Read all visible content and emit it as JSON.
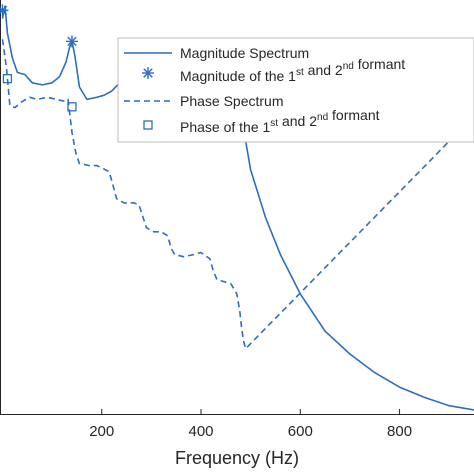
{
  "chart_data": {
    "type": "line",
    "xlabel": "Frequency (Hz)",
    "ylabel": "",
    "title": "",
    "xlim": [
      -5,
      950
    ],
    "ylim": [
      0,
      1
    ],
    "x_ticks": [
      200,
      400,
      600,
      800
    ],
    "x_tick_labels": [
      "200",
      "400",
      "600",
      "800"
    ],
    "grid": false,
    "legend": {
      "placement": "top-right",
      "entries": [
        {
          "label": "Magnitude Spectrum",
          "style": "solid-line"
        },
        {
          "label": "Magnitude of the 1st and 2nd formant",
          "style": "asterisk-marker"
        },
        {
          "label": "Phase Spectrum",
          "style": "dashed-line"
        },
        {
          "label": "Phase of the 1st and 2nd formant",
          "style": "square-marker"
        }
      ]
    },
    "series": [
      {
        "name": "Magnitude Spectrum",
        "style": "solid",
        "points": [
          [
            0,
            0.955
          ],
          [
            5,
            0.985
          ],
          [
            10,
            0.92
          ],
          [
            20,
            0.86
          ],
          [
            30,
            0.825
          ],
          [
            45,
            0.82
          ],
          [
            60,
            0.8
          ],
          [
            80,
            0.795
          ],
          [
            100,
            0.8
          ],
          [
            115,
            0.815
          ],
          [
            128,
            0.85
          ],
          [
            135,
            0.885
          ],
          [
            140,
            0.9
          ],
          [
            146,
            0.865
          ],
          [
            155,
            0.79
          ],
          [
            170,
            0.76
          ],
          [
            190,
            0.765
          ],
          [
            205,
            0.77
          ],
          [
            220,
            0.78
          ],
          [
            232,
            0.795
          ],
          [
            245,
            0.775
          ],
          [
            270,
            0.73
          ],
          [
            300,
            0.71
          ],
          [
            320,
            0.72
          ],
          [
            335,
            0.74
          ],
          [
            345,
            0.745
          ],
          [
            355,
            0.73
          ],
          [
            375,
            0.705
          ],
          [
            395,
            0.7
          ],
          [
            410,
            0.71
          ],
          [
            425,
            0.75
          ],
          [
            433,
            0.715
          ],
          [
            445,
            0.69
          ],
          [
            465,
            0.68
          ],
          [
            475,
            0.7
          ],
          [
            480,
            0.738
          ],
          [
            484,
            0.712
          ],
          [
            487,
            0.68
          ],
          [
            500,
            0.59
          ],
          [
            530,
            0.475
          ],
          [
            560,
            0.385
          ],
          [
            600,
            0.29
          ],
          [
            650,
            0.2
          ],
          [
            700,
            0.145
          ],
          [
            750,
            0.1
          ],
          [
            800,
            0.065
          ],
          [
            850,
            0.04
          ],
          [
            900,
            0.02
          ],
          [
            950,
            0.01
          ]
        ]
      },
      {
        "name": "Phase Spectrum",
        "style": "dashed",
        "points": [
          [
            0,
            0.905
          ],
          [
            8,
            0.835
          ],
          [
            15,
            0.745
          ],
          [
            25,
            0.74
          ],
          [
            40,
            0.755
          ],
          [
            55,
            0.765
          ],
          [
            70,
            0.76
          ],
          [
            90,
            0.765
          ],
          [
            110,
            0.76
          ],
          [
            125,
            0.755
          ],
          [
            132,
            0.76
          ],
          [
            140,
            0.68
          ],
          [
            148,
            0.63
          ],
          [
            155,
            0.605
          ],
          [
            175,
            0.6
          ],
          [
            190,
            0.6
          ],
          [
            200,
            0.595
          ],
          [
            215,
            0.585
          ],
          [
            222,
            0.555
          ],
          [
            230,
            0.52
          ],
          [
            245,
            0.51
          ],
          [
            265,
            0.51
          ],
          [
            275,
            0.505
          ],
          [
            282,
            0.48
          ],
          [
            290,
            0.45
          ],
          [
            305,
            0.44
          ],
          [
            320,
            0.44
          ],
          [
            333,
            0.43
          ],
          [
            340,
            0.4
          ],
          [
            347,
            0.385
          ],
          [
            365,
            0.38
          ],
          [
            385,
            0.385
          ],
          [
            400,
            0.39
          ],
          [
            418,
            0.375
          ],
          [
            425,
            0.345
          ],
          [
            432,
            0.325
          ],
          [
            445,
            0.32
          ],
          [
            460,
            0.315
          ],
          [
            472,
            0.29
          ],
          [
            478,
            0.25
          ],
          [
            482,
            0.205
          ],
          [
            486,
            0.175
          ],
          [
            490,
            0.158
          ],
          [
            950,
            0.72
          ]
        ]
      }
    ],
    "markers": [
      {
        "name": "Magnitude of the 1st and 2nd formant",
        "shape": "asterisk",
        "points": [
          [
            0,
            0.975
          ],
          [
            140,
            0.9
          ]
        ]
      },
      {
        "name": "Phase of the 1st and 2nd formant",
        "shape": "square",
        "points": [
          [
            10,
            0.81
          ],
          [
            140,
            0.742
          ]
        ]
      }
    ]
  }
}
